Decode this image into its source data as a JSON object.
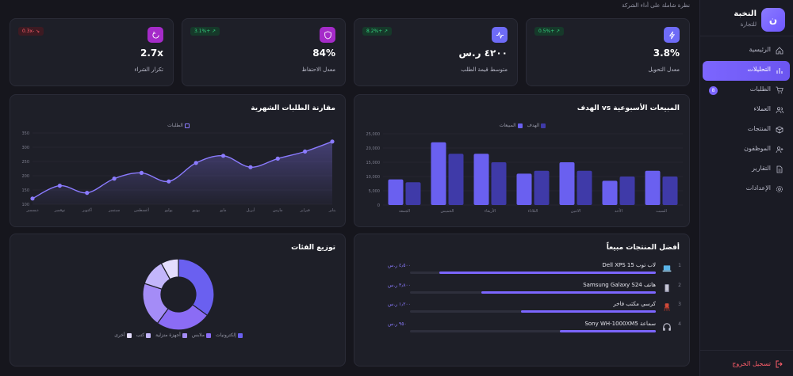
{
  "brand": {
    "logo": "ن",
    "name": "النخبة",
    "sub": "للتجارة"
  },
  "subtitle": "نظرة شاملة على أداء الشركة",
  "nav": [
    {
      "label": "الرئيسية",
      "icon": "home-icon"
    },
    {
      "label": "التحليلات",
      "icon": "bar-chart-icon",
      "active": true
    },
    {
      "label": "الطلبات",
      "icon": "cart-icon",
      "badge": "8"
    },
    {
      "label": "العملاء",
      "icon": "users-icon"
    },
    {
      "label": "المنتجات",
      "icon": "box-icon"
    },
    {
      "label": "الموظفون",
      "icon": "user-plus-icon"
    },
    {
      "label": "التقارير",
      "icon": "document-icon"
    },
    {
      "label": "الإعدادات",
      "icon": "gear-icon"
    }
  ],
  "logout": "تسجيل الخروج",
  "kpis": [
    {
      "label": "معدل التحويل",
      "value": "3.8%",
      "badge": "0.5%+ ↗",
      "trend": "up",
      "color": "#6e6bf7",
      "icon": "lightning-icon"
    },
    {
      "label": "متوسط قيمة الطلب",
      "value": "٤٢٠٠ ر.س",
      "badge": "8.2%+ ↗",
      "trend": "up",
      "color": "#6e6bf7",
      "icon": "activity-icon"
    },
    {
      "label": "معدل الاحتفاظ",
      "value": "84%",
      "badge": "3.1%+ ↗",
      "trend": "up",
      "color": "#a52bc9",
      "icon": "shield-icon"
    },
    {
      "label": "تكرار الشراء",
      "value": "2.7x",
      "badge": "0.3x- ↘",
      "trend": "down",
      "color": "#a52bc9",
      "icon": "refresh-icon"
    }
  ],
  "weekly": {
    "title": "المبيعات الأسبوعية vs الهدف",
    "chart_data": {
      "type": "bar",
      "categories": [
        "السبت",
        "الأحد",
        "الاثنين",
        "الثلاثاء",
        "الأربعاء",
        "الخميس",
        "الجمعة"
      ],
      "series": [
        {
          "name": "المبيعات",
          "values": [
            12000,
            8500,
            15000,
            11000,
            18000,
            22000,
            9000
          ]
        },
        {
          "name": "الهدف",
          "values": [
            10000,
            10000,
            12000,
            12000,
            15000,
            18000,
            8000
          ]
        }
      ],
      "ylim": [
        0,
        25000
      ],
      "yticks": [
        "0",
        "5,000",
        "10,000",
        "15,000",
        "20,000",
        "25,000"
      ],
      "colors": [
        "#6a60f0",
        "#3f3aa8"
      ]
    }
  },
  "monthly": {
    "title": "مقارنة الطلبات الشهرية",
    "chart_data": {
      "type": "line",
      "categories": [
        "يناير",
        "فبراير",
        "مارس",
        "أبريل",
        "مايو",
        "يونيو",
        "يوليو",
        "أغسطس",
        "سبتمبر",
        "أكتوبر",
        "نوفمبر",
        "ديسمبر"
      ],
      "series": [
        {
          "name": "الطلبات",
          "values": [
            120,
            165,
            140,
            190,
            210,
            180,
            245,
            270,
            230,
            260,
            285,
            320
          ]
        }
      ],
      "ylim": [
        100,
        350
      ],
      "yticks": [
        "100",
        "150",
        "200",
        "250",
        "300",
        "350"
      ],
      "color": "#8b7bff"
    }
  },
  "products": {
    "title": "أفضل المنتجات مبيعاً",
    "items": [
      {
        "rank": "1",
        "name": "لاب توب Dell XPS 15",
        "price": "٤٫٥٠٠ ر.س",
        "share": 0.88,
        "icon": "laptop-icon"
      },
      {
        "rank": "2",
        "name": "هاتف Samsung Galaxy S24",
        "price": "٣٫٨٠٠ ر.س",
        "share": 0.71,
        "icon": "phone-icon"
      },
      {
        "rank": "3",
        "name": "كرسي مكتب فاخر",
        "price": "١٫٢٠٠ ر.س",
        "share": 0.55,
        "icon": "chair-icon"
      },
      {
        "rank": "4",
        "name": "سماعة Sony WH-1000XM5",
        "price": "٩٥٠ ر.س",
        "share": 0.39,
        "icon": "headphones-icon"
      }
    ]
  },
  "categories": {
    "title": "توزيع الفئات",
    "chart_data": {
      "type": "pie",
      "labels": [
        "إلكترونيات",
        "ملابس",
        "أجهزة منزلية",
        "كتب",
        "أخرى"
      ],
      "values": [
        35,
        25,
        20,
        12,
        8
      ],
      "colors": [
        "#6a60f0",
        "#8b6cf5",
        "#a48cf7",
        "#c3b6fb",
        "#e4ddfd"
      ]
    }
  }
}
